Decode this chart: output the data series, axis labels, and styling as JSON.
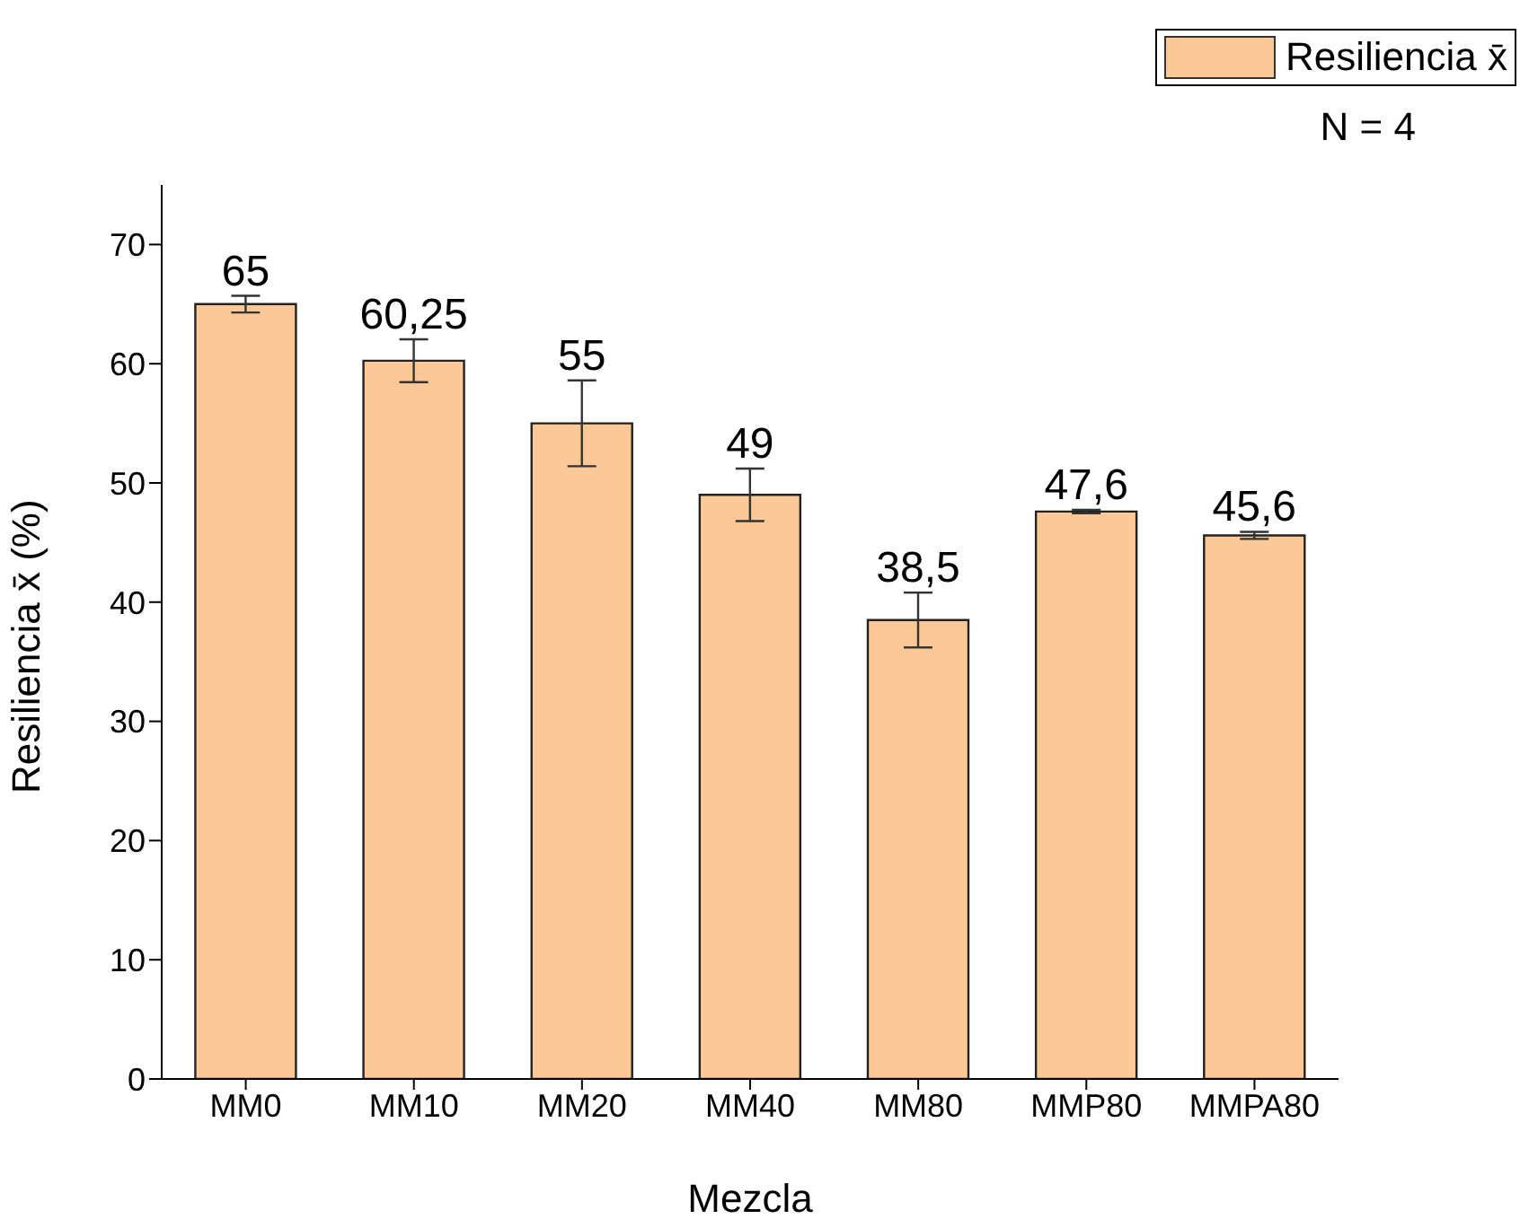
{
  "chart_data": {
    "type": "bar",
    "xlabel": "Mezcla",
    "ylabel": "Resiliencia x̄ (%)",
    "categories": [
      "MM0",
      "MM10",
      "MM20",
      "MM40",
      "MM80",
      "MMP80",
      "MMPA80"
    ],
    "series": [
      {
        "name": "Resiliencia x̄",
        "color": "#fbc896",
        "values": [
          65,
          60.25,
          55,
          49,
          38.5,
          47.6,
          45.6
        ],
        "errors": [
          0.7,
          1.8,
          3.6,
          2.2,
          2.3,
          0.15,
          0.3
        ],
        "value_labels": [
          "65",
          "60,25",
          "55",
          "49",
          "38,5",
          "47,6",
          "45,6"
        ]
      }
    ],
    "ylim": [
      0,
      75
    ],
    "yticks": [
      0,
      10,
      20,
      30,
      40,
      50,
      60,
      70
    ],
    "grid": false,
    "legend": "top right",
    "annotations": [
      "N = 4"
    ]
  }
}
